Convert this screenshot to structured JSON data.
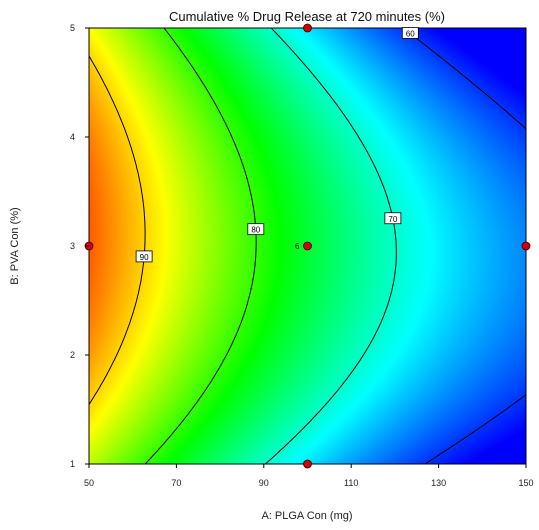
{
  "chart_data": {
    "type": "contour",
    "title": "Cumulative % Drug Release at 720 minutes  (%)",
    "xlabel": "A: PLGA Con (mg)",
    "ylabel": "B: PVA Con (%)",
    "xlim": [
      50,
      150
    ],
    "ylim": [
      1,
      5
    ],
    "x_ticks": [
      "50",
      "70",
      "90",
      "110",
      "130",
      "150"
    ],
    "y_ticks": [
      "1",
      "2",
      "3",
      "4",
      "5"
    ],
    "contour_levels": [
      {
        "label": "90",
        "value": 90
      },
      {
        "label": "80",
        "value": 80
      },
      {
        "label": "70",
        "value": 70
      },
      {
        "label": "60",
        "value": 60
      }
    ],
    "design_points": [
      {
        "x": 50,
        "y": 3
      },
      {
        "x": 100,
        "y": 5
      },
      {
        "x": 100,
        "y": 3,
        "label": "6"
      },
      {
        "x": 100,
        "y": 1
      },
      {
        "x": 150,
        "y": 3
      }
    ],
    "color_scale": [
      "#ff2a00",
      "#ffff00",
      "#00ff00",
      "#00ffff",
      "#0000ff"
    ],
    "response_range": [
      58,
      98
    ],
    "grid": false,
    "legend": "none"
  }
}
